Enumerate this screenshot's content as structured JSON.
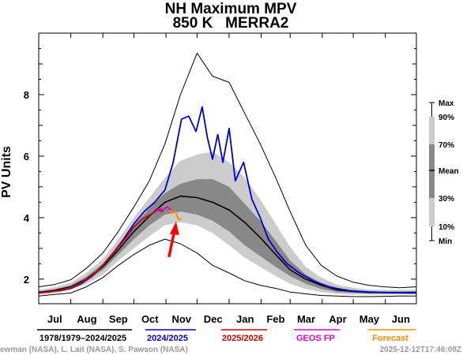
{
  "chart_data": {
    "type": "line",
    "title": "NH Maximum MPV",
    "subtitle": "850 K   MERRA2",
    "ylabel": "PV Units",
    "xlabel": "",
    "ylim": [
      1.2,
      10.0
    ],
    "xlim": [
      0,
      365
    ],
    "yticks": [
      2,
      4,
      6,
      8
    ],
    "months": [
      "Jul",
      "Aug",
      "Sep",
      "Oct",
      "Nov",
      "Dec",
      "Jan",
      "Feb",
      "Mar",
      "Apr",
      "May",
      "Jun"
    ],
    "climatology": {
      "x": [
        0,
        15,
        31,
        46,
        62,
        77,
        92,
        107,
        122,
        137,
        153,
        168,
        184,
        199,
        214,
        229,
        243,
        258,
        273,
        288,
        304,
        319,
        334,
        349,
        365
      ],
      "min": [
        1.45,
        1.5,
        1.55,
        1.75,
        2.05,
        2.45,
        2.8,
        3.1,
        3.3,
        3.15,
        2.85,
        2.45,
        2.2,
        1.95,
        1.8,
        1.7,
        1.58,
        1.52,
        1.47,
        1.45,
        1.43,
        1.43,
        1.44,
        1.45,
        1.45
      ],
      "p10": [
        1.5,
        1.55,
        1.65,
        1.85,
        2.15,
        2.6,
        3.0,
        3.4,
        3.75,
        3.85,
        3.75,
        3.5,
        3.1,
        2.7,
        2.4,
        2.1,
        1.85,
        1.68,
        1.58,
        1.52,
        1.5,
        1.5,
        1.5,
        1.5,
        1.5
      ],
      "p30": [
        1.55,
        1.6,
        1.7,
        1.95,
        2.3,
        2.8,
        3.3,
        3.75,
        4.1,
        4.2,
        4.1,
        3.9,
        3.55,
        3.1,
        2.75,
        2.4,
        2.1,
        1.85,
        1.68,
        1.58,
        1.55,
        1.53,
        1.53,
        1.53,
        1.55
      ],
      "mean": [
        1.57,
        1.63,
        1.75,
        2.0,
        2.4,
        2.95,
        3.55,
        4.05,
        4.5,
        4.7,
        4.65,
        4.5,
        4.25,
        3.85,
        3.35,
        2.8,
        2.3,
        2.0,
        1.8,
        1.65,
        1.6,
        1.57,
        1.56,
        1.56,
        1.57
      ],
      "p70": [
        1.6,
        1.67,
        1.8,
        2.08,
        2.5,
        3.1,
        3.75,
        4.3,
        4.8,
        5.1,
        5.25,
        5.25,
        5.0,
        4.45,
        3.9,
        3.25,
        2.6,
        2.15,
        1.88,
        1.72,
        1.65,
        1.6,
        1.6,
        1.6,
        1.6
      ],
      "p90": [
        1.65,
        1.73,
        1.88,
        2.2,
        2.65,
        3.3,
        4.0,
        4.65,
        5.3,
        5.85,
        6.05,
        6.15,
        5.8,
        5.3,
        4.6,
        3.8,
        3.05,
        2.4,
        2.05,
        1.82,
        1.72,
        1.66,
        1.65,
        1.65,
        1.65
      ],
      "max": [
        1.75,
        1.82,
        1.98,
        2.35,
        2.85,
        3.55,
        4.35,
        5.2,
        6.4,
        8.0,
        9.35,
        8.6,
        8.4,
        7.4,
        6.4,
        5.3,
        4.2,
        3.1,
        2.45,
        2.1,
        1.9,
        1.8,
        1.75,
        1.72,
        1.75
      ]
    },
    "series": [
      {
        "name": "2024/2025",
        "color": "#0000cc",
        "x": [
          0,
          10,
          20,
          31,
          41,
          52,
          62,
          72,
          82,
          92,
          102,
          112,
          122,
          130,
          138,
          145,
          152,
          158,
          163,
          168,
          173,
          178,
          184,
          190,
          198,
          206,
          214,
          222,
          230,
          240,
          252,
          265,
          280,
          300,
          320,
          340,
          365
        ],
        "y": [
          1.55,
          1.6,
          1.62,
          1.7,
          1.85,
          2.1,
          2.45,
          2.85,
          3.3,
          3.8,
          4.2,
          4.5,
          4.9,
          5.8,
          7.2,
          7.3,
          6.8,
          7.6,
          6.6,
          5.9,
          6.7,
          5.8,
          6.9,
          5.2,
          5.8,
          4.6,
          4.0,
          3.3,
          2.9,
          2.5,
          2.2,
          1.95,
          1.75,
          1.62,
          1.58,
          1.56,
          1.55
        ]
      },
      {
        "name": "2025/2026",
        "color": "#cc0000",
        "x": [
          0,
          10,
          20,
          31,
          41,
          52,
          62,
          72,
          82,
          92,
          100,
          108,
          115,
          120
        ],
        "y": [
          1.55,
          1.58,
          1.63,
          1.72,
          1.88,
          2.12,
          2.45,
          2.85,
          3.25,
          3.7,
          3.95,
          4.1,
          4.25,
          4.2
        ]
      },
      {
        "name": "GEOS FP",
        "color": "#dd00dd",
        "x": [
          112,
          116,
          120,
          124,
          128
        ],
        "y": [
          4.15,
          4.3,
          4.25,
          4.35,
          4.25
        ]
      },
      {
        "name": "Forecast",
        "color": "#ff8800",
        "x": [
          126,
          129,
          132,
          135,
          138
        ],
        "y": [
          4.25,
          4.15,
          4.2,
          3.95,
          3.95
        ]
      }
    ],
    "annotation": {
      "type": "arrow",
      "color": "#ff0000",
      "x": 132,
      "y": 3.95
    },
    "legend": [
      {
        "label": "1978/1979–2024/2025",
        "color": "#000000"
      },
      {
        "label": "2024/2025",
        "color": "#0000cc"
      },
      {
        "label": "2025/2026",
        "color": "#cc0000"
      },
      {
        "label": "GEOS FP",
        "color": "#dd00dd"
      },
      {
        "label": "Forecast",
        "color": "#ff8800"
      }
    ],
    "key_labels": [
      "Max",
      "90%",
      "70%",
      "Mean",
      "30%",
      "10%",
      "Min"
    ],
    "credit_left": "ewman (NASA), L. Lait (NASA), S. Pawson (NASA)",
    "credit_right": "2025-12-12T17:46:08Z"
  }
}
